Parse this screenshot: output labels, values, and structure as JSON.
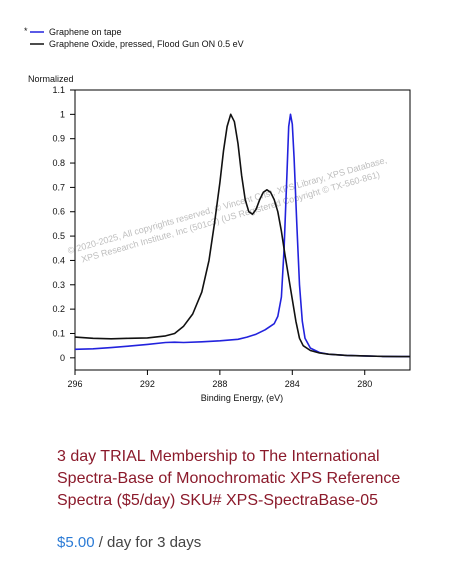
{
  "chart_data": {
    "type": "line",
    "ylabel": "Normalized",
    "xlabel": "Binding Energy, (eV)",
    "xlim": [
      296,
      277.5
    ],
    "ylim": [
      -0.05,
      1.1
    ],
    "x_reversed": true,
    "xticks": [
      296,
      292,
      288,
      284,
      280
    ],
    "xtick_labels": [
      "296",
      "292",
      "288",
      "284",
      "280"
    ],
    "yticks": [
      0,
      0.1,
      0.2,
      0.3,
      0.4,
      0.5,
      0.6,
      0.7,
      0.8,
      0.9,
      1,
      1.1
    ],
    "ytick_labels": [
      "0",
      "0.1",
      "0.2",
      "0.3",
      "0.4",
      "0.5",
      "0.6",
      "0.7",
      "0.8",
      "0.9",
      "1",
      "1.1"
    ],
    "grid": false,
    "legend_position": "top-left",
    "legend_marker": "*",
    "series": [
      {
        "name": "Graphene on tape",
        "color": "#2222dd",
        "points": [
          [
            296,
            0.035
          ],
          [
            295,
            0.037
          ],
          [
            294,
            0.042
          ],
          [
            293,
            0.048
          ],
          [
            292,
            0.055
          ],
          [
            291,
            0.063
          ],
          [
            290.5,
            0.064
          ],
          [
            290,
            0.063
          ],
          [
            289,
            0.066
          ],
          [
            288,
            0.07
          ],
          [
            287,
            0.076
          ],
          [
            286.5,
            0.085
          ],
          [
            286,
            0.097
          ],
          [
            285.5,
            0.115
          ],
          [
            285,
            0.14
          ],
          [
            284.8,
            0.17
          ],
          [
            284.6,
            0.25
          ],
          [
            284.45,
            0.45
          ],
          [
            284.3,
            0.75
          ],
          [
            284.2,
            0.95
          ],
          [
            284.1,
            1.0
          ],
          [
            284.0,
            0.96
          ],
          [
            283.9,
            0.82
          ],
          [
            283.75,
            0.55
          ],
          [
            283.6,
            0.3
          ],
          [
            283.45,
            0.15
          ],
          [
            283.3,
            0.08
          ],
          [
            283.0,
            0.04
          ],
          [
            282.5,
            0.022
          ],
          [
            282,
            0.015
          ],
          [
            281,
            0.01
          ],
          [
            280,
            0.008
          ],
          [
            279,
            0.006
          ],
          [
            278,
            0.005
          ],
          [
            277.5,
            0.005
          ]
        ]
      },
      {
        "name": "Graphene Oxide, pressed, Flood Gun ON 0.5 eV",
        "color": "#111111",
        "points": [
          [
            296,
            0.085
          ],
          [
            295,
            0.08
          ],
          [
            294,
            0.078
          ],
          [
            293,
            0.08
          ],
          [
            292,
            0.082
          ],
          [
            291,
            0.09
          ],
          [
            290.5,
            0.1
          ],
          [
            290,
            0.13
          ],
          [
            289.5,
            0.18
          ],
          [
            289,
            0.27
          ],
          [
            288.6,
            0.4
          ],
          [
            288.3,
            0.55
          ],
          [
            288,
            0.72
          ],
          [
            287.8,
            0.85
          ],
          [
            287.6,
            0.95
          ],
          [
            287.4,
            1.0
          ],
          [
            287.2,
            0.97
          ],
          [
            287,
            0.88
          ],
          [
            286.8,
            0.75
          ],
          [
            286.6,
            0.65
          ],
          [
            286.4,
            0.6
          ],
          [
            286.2,
            0.59
          ],
          [
            286,
            0.61
          ],
          [
            285.8,
            0.65
          ],
          [
            285.6,
            0.68
          ],
          [
            285.4,
            0.69
          ],
          [
            285.2,
            0.68
          ],
          [
            285,
            0.65
          ],
          [
            284.8,
            0.6
          ],
          [
            284.6,
            0.52
          ],
          [
            284.4,
            0.42
          ],
          [
            284.2,
            0.33
          ],
          [
            284.0,
            0.24
          ],
          [
            283.8,
            0.15
          ],
          [
            283.6,
            0.08
          ],
          [
            283.4,
            0.05
          ],
          [
            283.0,
            0.03
          ],
          [
            282.5,
            0.02
          ],
          [
            282,
            0.015
          ],
          [
            281,
            0.01
          ],
          [
            280,
            0.008
          ],
          [
            279,
            0.006
          ],
          [
            278,
            0.005
          ],
          [
            277.5,
            0.005
          ]
        ]
      }
    ],
    "watermark": "© 2020-2025, All copyrights reserved, © Vincent Crist, XPS Library, XPS Database, XPS Research Institute, Inc (501c3) (US Registered Copyright © TX-560-861)"
  },
  "product": {
    "title": "3 day TRIAL Membership to The International Spectra-Base of Monochromatic XPS Reference Spectra ($5/day) SKU# XPS-SpectraBase-05",
    "price": "$5.00",
    "price_suffix": " / day for 3 days",
    "title_color": "#8b1a2b",
    "price_color": "#2b7bd6"
  }
}
